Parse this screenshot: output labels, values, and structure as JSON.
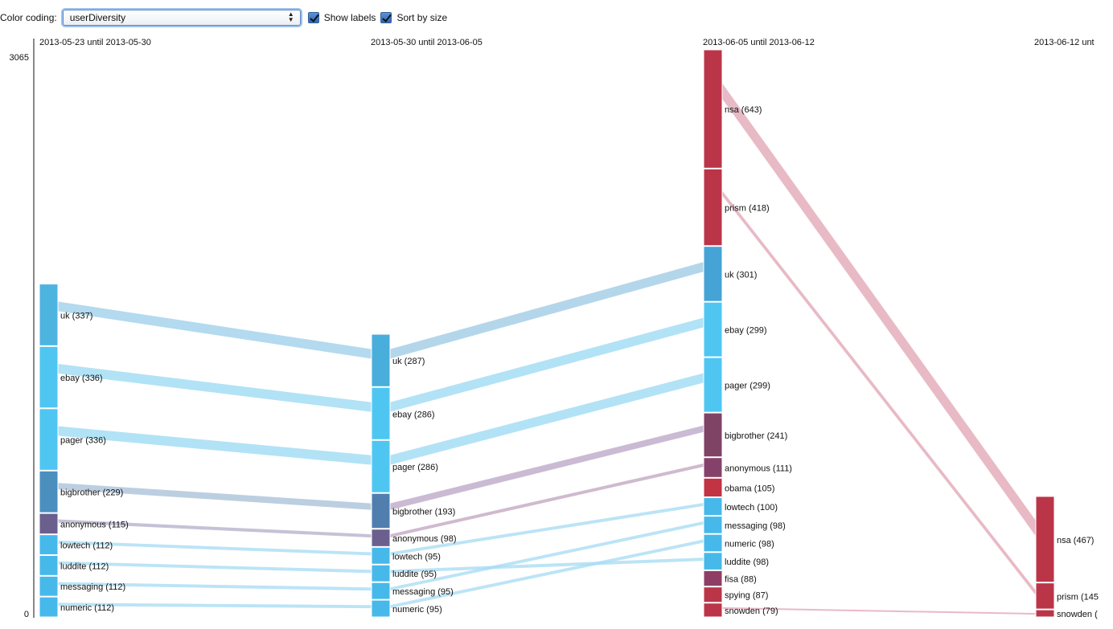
{
  "controls": {
    "color_coding_label": "Color coding:",
    "selected_option": "userDiversity",
    "show_labels_label": "Show labels",
    "sort_by_size_label": "Sort by size"
  },
  "chart_data": {
    "type": "flow",
    "y_axis": {
      "max_label": "3065",
      "min_label": "0",
      "range": [
        0,
        3065
      ]
    },
    "show_labels": true,
    "sort_by_size": true,
    "color_coding": "userDiversity",
    "columns": [
      {
        "period": "2013-05-23 until 2013-05-30",
        "nodes": [
          {
            "id": "c1-uk",
            "label": "uk (337)",
            "name": "uk",
            "value": 337,
            "color": "#4db4e0"
          },
          {
            "id": "c1-ebay",
            "label": "ebay (336)",
            "name": "ebay",
            "value": 336,
            "color": "#4fc6f2"
          },
          {
            "id": "c1-pager",
            "label": "pager (336)",
            "name": "pager",
            "value": 336,
            "color": "#4fc6f2"
          },
          {
            "id": "c1-bigbrother",
            "label": "bigbrother (229)",
            "name": "bigbrother",
            "value": 229,
            "color": "#4a8fbe"
          },
          {
            "id": "c1-anonymous",
            "label": "anonymous (115)",
            "name": "anonymous",
            "value": 115,
            "color": "#6a5f8d"
          },
          {
            "id": "c1-lowtech",
            "label": "lowtech (112)",
            "name": "lowtech",
            "value": 112,
            "color": "#46b9ea"
          },
          {
            "id": "c1-luddite",
            "label": "luddite (112)",
            "name": "luddite",
            "value": 112,
            "color": "#46b9ea"
          },
          {
            "id": "c1-messaging",
            "label": "messaging (112)",
            "name": "messaging",
            "value": 112,
            "color": "#46b9ea"
          },
          {
            "id": "c1-numeric",
            "label": "numeric (112)",
            "name": "numeric",
            "value": 112,
            "color": "#46b9ea"
          }
        ]
      },
      {
        "period": "2013-05-30 until 2013-06-05",
        "nodes": [
          {
            "id": "c2-uk",
            "label": "uk (287)",
            "name": "uk",
            "value": 287,
            "color": "#49aedb"
          },
          {
            "id": "c2-ebay",
            "label": "ebay (286)",
            "name": "ebay",
            "value": 286,
            "color": "#4fc6f2"
          },
          {
            "id": "c2-pager",
            "label": "pager (286)",
            "name": "pager",
            "value": 286,
            "color": "#4fc6f2"
          },
          {
            "id": "c2-bigbrother",
            "label": "bigbrother (193)",
            "name": "bigbrother",
            "value": 193,
            "color": "#507faf"
          },
          {
            "id": "c2-anonymous",
            "label": "anonymous (98)",
            "name": "anonymous",
            "value": 98,
            "color": "#6a5f8d"
          },
          {
            "id": "c2-lowtech",
            "label": "lowtech (95)",
            "name": "lowtech",
            "value": 95,
            "color": "#46b9ea"
          },
          {
            "id": "c2-luddite",
            "label": "luddite (95)",
            "name": "luddite",
            "value": 95,
            "color": "#46b9ea"
          },
          {
            "id": "c2-messaging",
            "label": "messaging (95)",
            "name": "messaging",
            "value": 95,
            "color": "#46b9ea"
          },
          {
            "id": "c2-numeric",
            "label": "numeric (95)",
            "name": "numeric",
            "value": 95,
            "color": "#46b9ea"
          }
        ]
      },
      {
        "period": "2013-06-05 until 2013-06-12",
        "nodes": [
          {
            "id": "c3-nsa",
            "label": "nsa (643)",
            "name": "nsa",
            "value": 643,
            "color": "#bb3548"
          },
          {
            "id": "c3-prism",
            "label": "prism (418)",
            "name": "prism",
            "value": 418,
            "color": "#bb3548"
          },
          {
            "id": "c3-uk",
            "label": "uk (301)",
            "name": "uk",
            "value": 301,
            "color": "#46a3d5"
          },
          {
            "id": "c3-ebay",
            "label": "ebay (299)",
            "name": "ebay",
            "value": 299,
            "color": "#4fc6f2"
          },
          {
            "id": "c3-pager",
            "label": "pager (299)",
            "name": "pager",
            "value": 299,
            "color": "#4fc6f2"
          },
          {
            "id": "c3-bigbrother",
            "label": "bigbrother (241)",
            "name": "bigbrother",
            "value": 241,
            "color": "#7f4366"
          },
          {
            "id": "c3-anonymous",
            "label": "anonymous (111)",
            "name": "anonymous",
            "value": 111,
            "color": "#86416a"
          },
          {
            "id": "c3-obama",
            "label": "obama (105)",
            "name": "obama",
            "value": 105,
            "color": "#c23443"
          },
          {
            "id": "c3-lowtech",
            "label": "lowtech (100)",
            "name": "lowtech",
            "value": 100,
            "color": "#46b9ea"
          },
          {
            "id": "c3-messaging",
            "label": "messaging (98)",
            "name": "messaging",
            "value": 98,
            "color": "#46b9ea"
          },
          {
            "id": "c3-numeric",
            "label": "numeric (98)",
            "name": "numeric",
            "value": 98,
            "color": "#46b9ea"
          },
          {
            "id": "c3-luddite",
            "label": "luddite (98)",
            "name": "luddite",
            "value": 98,
            "color": "#46b9ea"
          },
          {
            "id": "c3-fisa",
            "label": "fisa (88)",
            "name": "fisa",
            "value": 88,
            "color": "#8e3e65"
          },
          {
            "id": "c3-spying",
            "label": "spying (87)",
            "name": "spying",
            "value": 87,
            "color": "#bb3548"
          },
          {
            "id": "c3-snowden",
            "label": "snowden (79)",
            "name": "snowden",
            "value": 79,
            "color": "#bb3548"
          }
        ]
      },
      {
        "period": "2013-06-12 unt",
        "nodes": [
          {
            "id": "c4-nsa",
            "label": "nsa (467)",
            "name": "nsa",
            "value": 467,
            "color": "#bb3548"
          },
          {
            "id": "c4-prism",
            "label": "prism (145",
            "name": "prism",
            "value": 145,
            "color": "#bb3548"
          },
          {
            "id": "c4-snowden",
            "label": "snowden (",
            "name": "snowden",
            "color": "#bb3548"
          }
        ]
      }
    ],
    "links": [
      {
        "from": "c1-uk",
        "to": "c2-uk",
        "color": "#9ed0ea"
      },
      {
        "from": "c1-ebay",
        "to": "c2-ebay",
        "color": "#9cdaf3"
      },
      {
        "from": "c1-pager",
        "to": "c2-pager",
        "color": "#9cdaf3"
      },
      {
        "from": "c1-bigbrother",
        "to": "c2-bigbrother",
        "color": "#a9c1d8"
      },
      {
        "from": "c1-anonymous",
        "to": "c2-anonymous",
        "color": "#b7b0cb"
      },
      {
        "from": "c1-lowtech",
        "to": "c2-lowtech",
        "color": "#a8dcf3"
      },
      {
        "from": "c1-luddite",
        "to": "c2-luddite",
        "color": "#a8dcf3"
      },
      {
        "from": "c1-messaging",
        "to": "c2-messaging",
        "color": "#a8dcf3"
      },
      {
        "from": "c1-numeric",
        "to": "c2-numeric",
        "color": "#a8dcf3"
      },
      {
        "from": "c2-uk",
        "to": "c3-uk",
        "color": "#9ecbe4"
      },
      {
        "from": "c2-ebay",
        "to": "c3-ebay",
        "color": "#9cdaf3"
      },
      {
        "from": "c2-pager",
        "to": "c3-pager",
        "color": "#9cdaf3"
      },
      {
        "from": "c2-bigbrother",
        "to": "c3-bigbrother",
        "color": "#bba6c6"
      },
      {
        "from": "c2-anonymous",
        "to": "c3-anonymous",
        "color": "#c2a7c0"
      },
      {
        "from": "c2-lowtech",
        "to": "c3-lowtech",
        "color": "#a8dcf3"
      },
      {
        "from": "c2-messaging",
        "to": "c3-messaging",
        "color": "#a8dcf3"
      },
      {
        "from": "c2-numeric",
        "to": "c3-numeric",
        "color": "#a8dcf3"
      },
      {
        "from": "c2-luddite",
        "to": "c3-luddite",
        "color": "#a8dcf3"
      },
      {
        "from": "c3-nsa",
        "to": "c4-nsa",
        "color": "#e2a7b5"
      },
      {
        "from": "c3-prism",
        "to": "c4-prism",
        "color": "#e2a7b5"
      },
      {
        "from": "c3-snowden",
        "to": "c4-snowden",
        "color": "#e2a7b5"
      }
    ]
  }
}
